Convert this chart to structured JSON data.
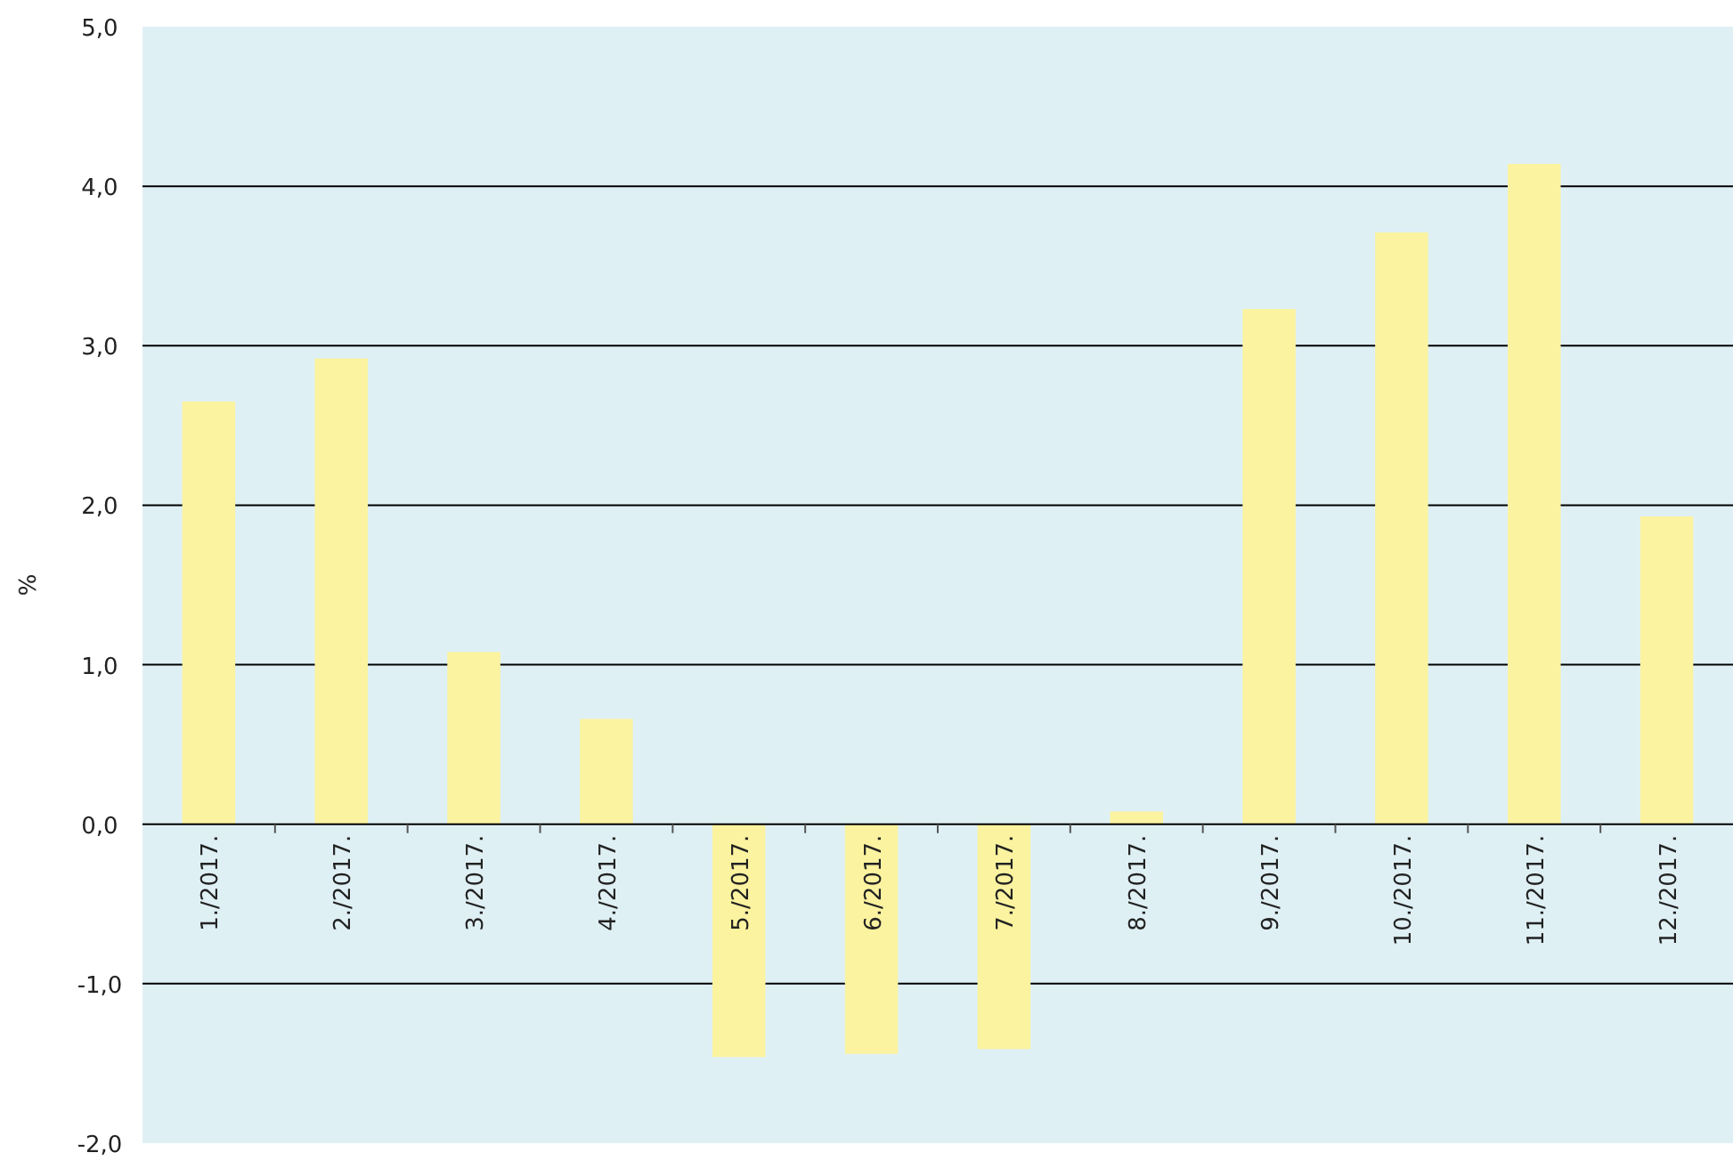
{
  "chart_data": {
    "type": "bar",
    "ylabel": "%",
    "categories": [
      "1./2017.",
      "2./2017.",
      "3./2017.",
      "4./2017.",
      "5./2017.",
      "6./2017.",
      "7./2017.",
      "8./2017.",
      "9./2017.",
      "10./2017.",
      "11./2017.",
      "12./2017."
    ],
    "values": [
      2.65,
      2.92,
      1.08,
      0.66,
      -1.46,
      -1.44,
      -1.41,
      0.08,
      3.23,
      3.71,
      4.14,
      1.93
    ],
    "color": "#fbf3a0",
    "ylim": [
      -2,
      5
    ],
    "yticks": [
      {
        "value": -2,
        "label": "-2,0"
      },
      {
        "value": -1,
        "label": "-1,0"
      },
      {
        "value": 0,
        "label": "0,0"
      },
      {
        "value": 1,
        "label": "1,0"
      },
      {
        "value": 2,
        "label": "2,0"
      },
      {
        "value": 3,
        "label": "3,0"
      },
      {
        "value": 4,
        "label": "4,0"
      },
      {
        "value": 5,
        "label": "5,0"
      }
    ],
    "grid": "y"
  }
}
